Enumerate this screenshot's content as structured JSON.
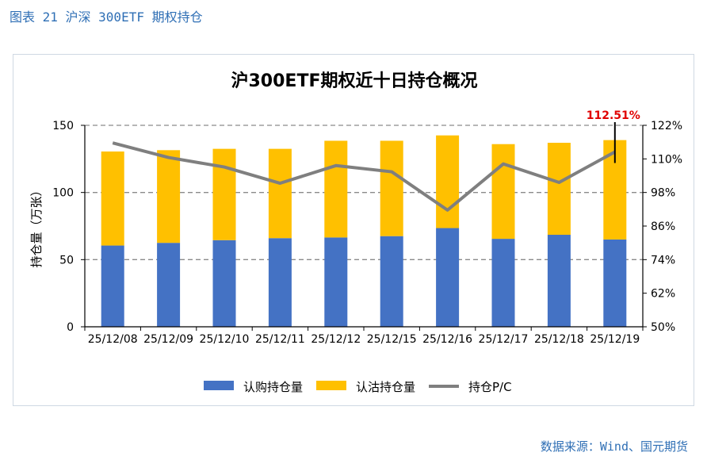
{
  "figure_caption": "图表 21 沪深 300ETF 期权持仓",
  "source_note": "数据来源：Wind、国元期货",
  "chart_data": {
    "type": "bar",
    "stacked": true,
    "title": "沪300ETF期权近十日持仓概况",
    "ylabel": "持仓量（万张）",
    "y2label": "",
    "ylim": [
      0,
      150
    ],
    "y2lim": [
      0.5,
      1.22
    ],
    "y_ticks": [
      "0",
      "50",
      "100",
      "150"
    ],
    "y2_ticks": [
      "50%",
      "62%",
      "74%",
      "86%",
      "98%",
      "110%",
      "122%"
    ],
    "categories": [
      "25/12/08",
      "25/12/09",
      "25/12/10",
      "25/12/11",
      "25/12/12",
      "25/12/15",
      "25/12/16",
      "25/12/17",
      "25/12/18",
      "25/12/19"
    ],
    "series": [
      {
        "name": "认购持仓量",
        "kind": "bar",
        "color": "#4472C4",
        "values": [
          60.5,
          62.5,
          64.5,
          66.0,
          66.5,
          67.5,
          73.5,
          65.5,
          68.5,
          65.0
        ]
      },
      {
        "name": "认沽持仓量",
        "kind": "bar",
        "color": "#FFC000",
        "values": [
          70.0,
          69.0,
          68.0,
          66.5,
          72.0,
          71.0,
          69.0,
          70.5,
          68.5,
          74.0
        ]
      },
      {
        "name": "持仓P/C",
        "kind": "line",
        "axis": "right",
        "color": "#7F7F7F",
        "values": [
          1.157,
          1.105,
          1.071,
          1.013,
          1.076,
          1.054,
          0.917,
          1.082,
          1.016,
          1.125
        ]
      }
    ],
    "annotation": {
      "text": "112.51%",
      "color": "#E00000",
      "category_index": 9
    },
    "grid": "dashed-horizontal",
    "legend": "bottom"
  }
}
